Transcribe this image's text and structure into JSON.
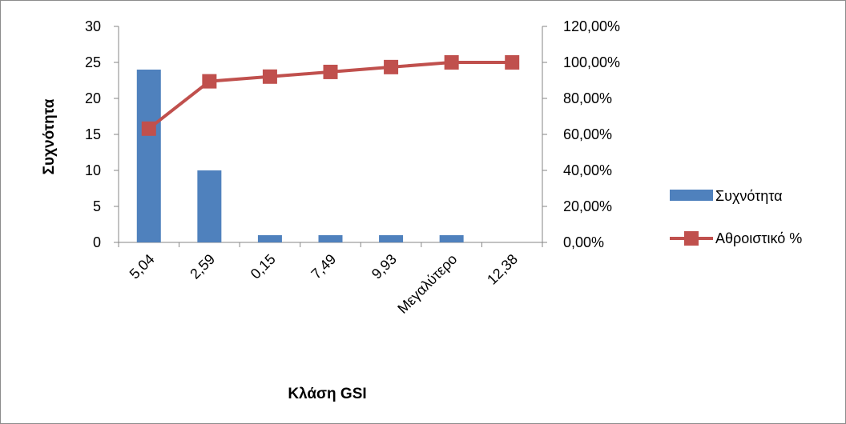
{
  "chart_data": {
    "type": "bar",
    "title": "",
    "xlabel": "Κλάση GSI",
    "ylabel": "Συχνότητα",
    "y2label": "",
    "categories": [
      "5,04",
      "2,59",
      "0,15",
      "7,49",
      "9,93",
      "Μεγαλύτερο",
      "12,38"
    ],
    "ylim": [
      0,
      30
    ],
    "yticks": [
      0,
      5,
      10,
      15,
      20,
      25,
      30
    ],
    "y2lim": [
      0,
      1.2
    ],
    "y2ticks": [
      "0,00%",
      "20,00%",
      "40,00%",
      "60,00%",
      "80,00%",
      "100,00%",
      "120,00%"
    ],
    "grid": false,
    "legend_position": "right",
    "series": [
      {
        "name": "Συχνότητα",
        "type": "bar",
        "axis": "left",
        "color": "#4f81bd",
        "values": [
          24,
          10,
          1,
          1,
          1,
          1,
          0
        ]
      },
      {
        "name": "Αθροιστικό %",
        "type": "line",
        "axis": "right",
        "marker": "square",
        "color": "#c0504d",
        "values": [
          0.632,
          0.895,
          0.921,
          0.947,
          0.974,
          1.0,
          1.0
        ]
      }
    ]
  }
}
